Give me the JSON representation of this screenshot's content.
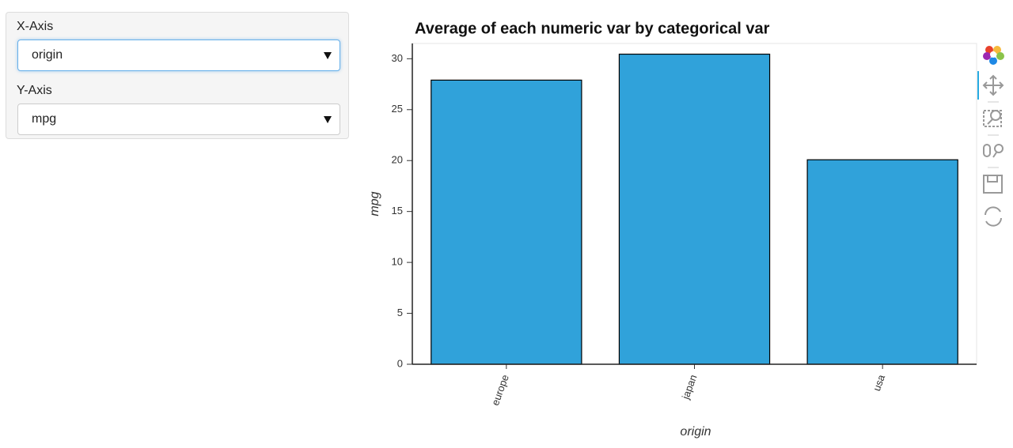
{
  "controls": [
    {
      "label": "X-Axis",
      "value": "origin"
    },
    {
      "label": "Y-Axis",
      "value": "mpg"
    }
  ],
  "chart_data": {
    "type": "bar",
    "title": "Average of each numeric var by categorical var",
    "categories": [
      "europe",
      "japan",
      "usa"
    ],
    "values": [
      27.9,
      30.45,
      20.08
    ],
    "color": "#30a2da",
    "xlabel": "origin",
    "ylabel": "mpg",
    "ylim": [
      0,
      31.5
    ],
    "yticks": [
      0,
      5,
      10,
      15,
      20,
      25,
      30
    ]
  }
}
